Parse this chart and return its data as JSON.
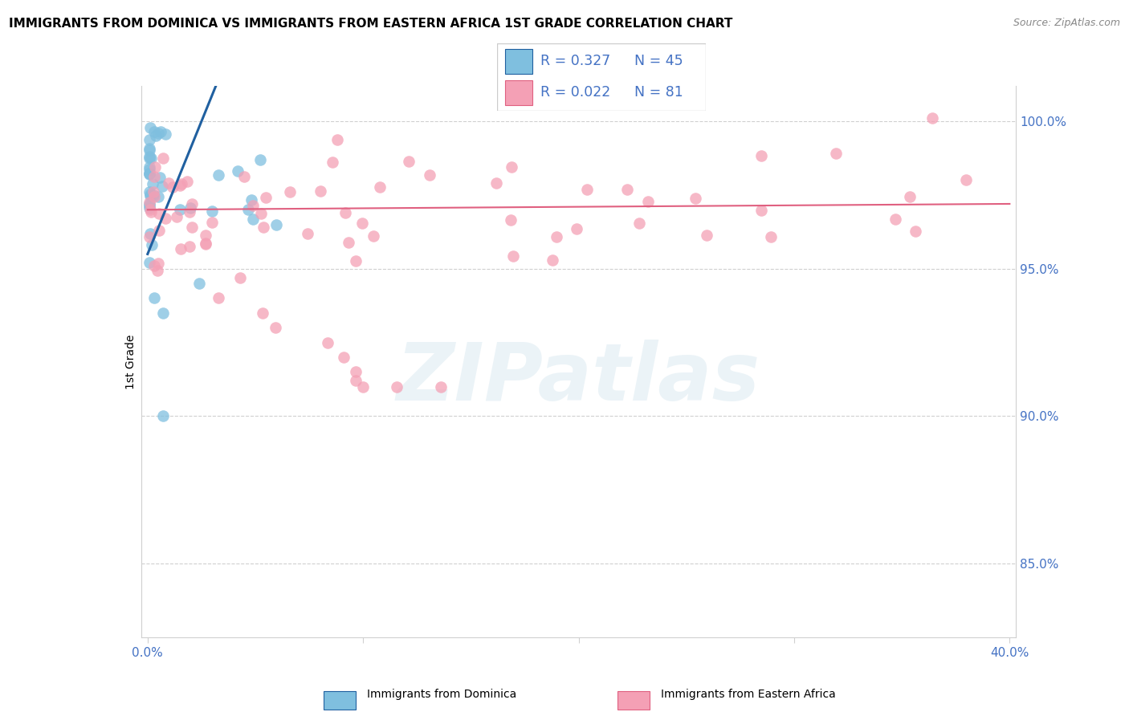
{
  "title": "IMMIGRANTS FROM DOMINICA VS IMMIGRANTS FROM EASTERN AFRICA 1ST GRADE CORRELATION CHART",
  "source": "Source: ZipAtlas.com",
  "ylabel": "1st Grade",
  "xlim": [
    -0.003,
    0.403
  ],
  "ylim": [
    0.825,
    1.012
  ],
  "xtick_positions": [
    0.0,
    0.1,
    0.2,
    0.3,
    0.4
  ],
  "xticklabels": [
    "0.0%",
    "",
    "",
    "",
    "40.0%"
  ],
  "ytick_vals": [
    1.0,
    0.95,
    0.9,
    0.85
  ],
  "ytick_labels": [
    "100.0%",
    "95.0%",
    "90.0%",
    "85.0%"
  ],
  "legend_R1": "0.327",
  "legend_N1": "45",
  "legend_R2": "0.022",
  "legend_N2": "81",
  "color_blue": "#7fbfdf",
  "color_pink": "#f4a0b5",
  "color_blue_line": "#2060a0",
  "color_pink_line": "#e06080",
  "color_axis_text": "#4472c4",
  "watermark_text": "ZIPatlas",
  "grid_color": "#d0d0d0"
}
